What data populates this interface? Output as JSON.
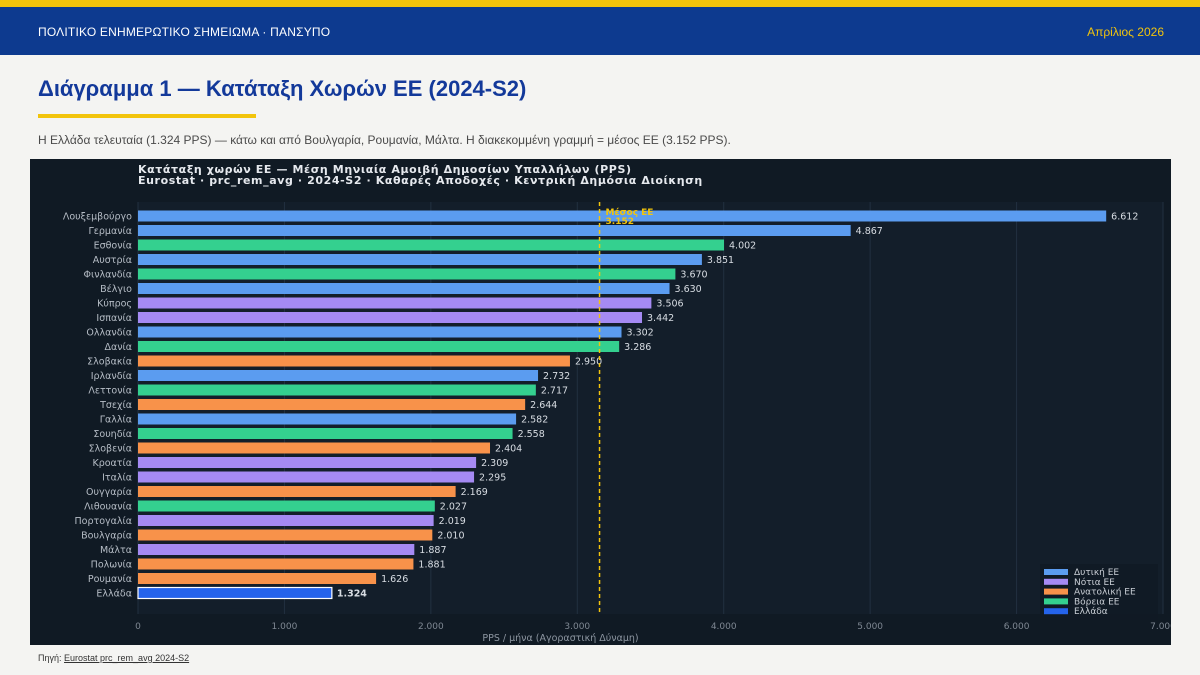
{
  "header": {
    "left_text": "ΠΟΛΙΤΙΚΟ ΕΝΗΜΕΡΩΤΙΚΟ ΣΗΜΕΙΩΜΑ · ΠΑΝΣΥΠΟ",
    "right_text": "Απρίλιος 2026"
  },
  "page": {
    "title": "Διάγραμμα 1 — Κατάταξη Χωρών ΕΕ (2024-S2)",
    "subtitle": "Η Ελλάδα τελευταία (1.324 PPS) — κάτω και από Βουλγαρία, Ρουμανία, Μάλτα. Η διακεκομμένη γραμμή = μέσος ΕΕ (3.152 PPS)."
  },
  "footer": {
    "source_prefix": "Πηγή:",
    "source_link": "Eurostat prc_rem_avg 2024-S2"
  },
  "colors": {
    "Δυτική ΕΕ": "#5b9cf0",
    "Νότια ΕΕ": "#a58af3",
    "Ανατολική ΕΕ": "#f8924a",
    "Βόρεια ΕΕ": "#34d08f",
    "Ελλάδα": "#2563eb",
    "mean_line": "#f2c40c"
  },
  "chart_data": {
    "type": "bar",
    "orientation": "horizontal",
    "title_line1": "Κατάταξη χωρών ΕΕ — Μέση Μηνιαία Αμοιβή Δημοσίων Υπαλλήλων (PPS)",
    "title_line2": "Eurostat · prc_rem_avg · 2024-S2 · Καθαρές Αποδοχές · Κεντρική Δημόσια Διοίκηση",
    "xlabel": "PPS / μήνα  (Αγοραστική Δύναμη)",
    "xlim": [
      0,
      7000
    ],
    "xticks": [
      0,
      1000,
      2000,
      3000,
      4000,
      5000,
      6000,
      7000
    ],
    "xtick_labels": [
      "0",
      "1.000",
      "2.000",
      "3.000",
      "4.000",
      "5.000",
      "6.000",
      "7.000"
    ],
    "mean": 3152,
    "mean_label_line1": "Μέσος ΕΕ",
    "mean_label_line2": "3.152",
    "legend_position": "bottom-right",
    "legend": [
      "Δυτική ΕΕ",
      "Νότια ΕΕ",
      "Ανατολική ΕΕ",
      "Βόρεια ΕΕ",
      "Ελλάδα"
    ],
    "bars": [
      {
        "country": "Λουξεμβούργο",
        "value": 6612,
        "label": "6.612",
        "group": "Δυτική ΕΕ"
      },
      {
        "country": "Γερμανία",
        "value": 4867,
        "label": "4.867",
        "group": "Δυτική ΕΕ"
      },
      {
        "country": "Εσθονία",
        "value": 4002,
        "label": "4.002",
        "group": "Βόρεια ΕΕ"
      },
      {
        "country": "Αυστρία",
        "value": 3851,
        "label": "3.851",
        "group": "Δυτική ΕΕ"
      },
      {
        "country": "Φινλανδία",
        "value": 3670,
        "label": "3.670",
        "group": "Βόρεια ΕΕ"
      },
      {
        "country": "Βέλγιο",
        "value": 3630,
        "label": "3.630",
        "group": "Δυτική ΕΕ"
      },
      {
        "country": "Κύπρος",
        "value": 3506,
        "label": "3.506",
        "group": "Νότια ΕΕ"
      },
      {
        "country": "Ισπανία",
        "value": 3442,
        "label": "3.442",
        "group": "Νότια ΕΕ"
      },
      {
        "country": "Ολλανδία",
        "value": 3302,
        "label": "3.302",
        "group": "Δυτική ΕΕ"
      },
      {
        "country": "Δανία",
        "value": 3286,
        "label": "3.286",
        "group": "Βόρεια ΕΕ"
      },
      {
        "country": "Σλοβακία",
        "value": 2950,
        "label": "2.950",
        "group": "Ανατολική ΕΕ"
      },
      {
        "country": "Ιρλανδία",
        "value": 2732,
        "label": "2.732",
        "group": "Δυτική ΕΕ"
      },
      {
        "country": "Λεττονία",
        "value": 2717,
        "label": "2.717",
        "group": "Βόρεια ΕΕ"
      },
      {
        "country": "Τσεχία",
        "value": 2644,
        "label": "2.644",
        "group": "Ανατολική ΕΕ"
      },
      {
        "country": "Γαλλία",
        "value": 2582,
        "label": "2.582",
        "group": "Δυτική ΕΕ"
      },
      {
        "country": "Σουηδία",
        "value": 2558,
        "label": "2.558",
        "group": "Βόρεια ΕΕ"
      },
      {
        "country": "Σλοβενία",
        "value": 2404,
        "label": "2.404",
        "group": "Ανατολική ΕΕ"
      },
      {
        "country": "Κροατία",
        "value": 2309,
        "label": "2.309",
        "group": "Νότια ΕΕ"
      },
      {
        "country": "Ιταλία",
        "value": 2295,
        "label": "2.295",
        "group": "Νότια ΕΕ"
      },
      {
        "country": "Ουγγαρία",
        "value": 2169,
        "label": "2.169",
        "group": "Ανατολική ΕΕ"
      },
      {
        "country": "Λιθουανία",
        "value": 2027,
        "label": "2.027",
        "group": "Βόρεια ΕΕ"
      },
      {
        "country": "Πορτογαλία",
        "value": 2019,
        "label": "2.019",
        "group": "Νότια ΕΕ"
      },
      {
        "country": "Βουλγαρία",
        "value": 2010,
        "label": "2.010",
        "group": "Ανατολική ΕΕ"
      },
      {
        "country": "Μάλτα",
        "value": 1887,
        "label": "1.887",
        "group": "Νότια ΕΕ"
      },
      {
        "country": "Πολωνία",
        "value": 1881,
        "label": "1.881",
        "group": "Ανατολική ΕΕ"
      },
      {
        "country": "Ρουμανία",
        "value": 1626,
        "label": "1.626",
        "group": "Ανατολική ΕΕ"
      },
      {
        "country": "Ελλάδα",
        "value": 1324,
        "label": "1.324",
        "group": "Ελλάδα"
      }
    ]
  }
}
